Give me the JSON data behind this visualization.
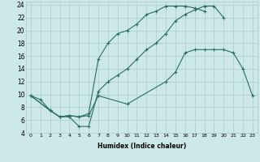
{
  "xlabel": "Humidex (Indice chaleur)",
  "bg_color": "#cce8e8",
  "grid_color": "#aacccc",
  "line_color": "#2a6e65",
  "xlim": [
    -0.5,
    23.5
  ],
  "ylim": [
    4,
    24.5
  ],
  "xticks": [
    0,
    1,
    2,
    3,
    4,
    5,
    6,
    7,
    8,
    9,
    10,
    11,
    12,
    13,
    14,
    15,
    16,
    17,
    18,
    19,
    20,
    21,
    22,
    23
  ],
  "yticks": [
    4,
    6,
    8,
    10,
    12,
    14,
    16,
    18,
    20,
    22,
    24
  ],
  "series": [
    {
      "x": [
        0,
        1,
        2,
        3,
        4,
        5,
        6,
        7,
        8,
        9,
        10,
        11,
        12,
        13,
        14,
        15,
        16,
        17,
        18,
        19,
        20
      ],
      "y": [
        9.8,
        9.2,
        7.5,
        6.5,
        6.5,
        5.0,
        5.0,
        10.5,
        12.0,
        13.0,
        14.0,
        15.5,
        17.0,
        18.0,
        19.5,
        21.5,
        22.5,
        23.2,
        23.8,
        23.8,
        22.0
      ]
    },
    {
      "x": [
        0,
        2,
        3,
        4,
        5,
        6,
        7,
        8,
        9,
        10,
        11,
        12,
        13,
        14,
        15,
        16,
        17,
        18
      ],
      "y": [
        9.8,
        7.5,
        6.5,
        6.7,
        6.5,
        7.0,
        15.5,
        18.0,
        19.5,
        20.0,
        21.0,
        22.5,
        23.0,
        23.8,
        23.8,
        23.8,
        23.5,
        23.0
      ]
    },
    {
      "x": [
        0,
        2,
        3,
        4,
        5,
        6,
        7,
        10,
        14,
        15,
        16,
        17,
        18,
        19,
        20,
        21,
        22,
        23
      ],
      "y": [
        9.8,
        7.5,
        6.5,
        6.7,
        6.5,
        6.7,
        9.8,
        8.5,
        12.0,
        13.5,
        16.5,
        17.0,
        17.0,
        17.0,
        17.0,
        16.5,
        14.0,
        9.8
      ]
    }
  ]
}
